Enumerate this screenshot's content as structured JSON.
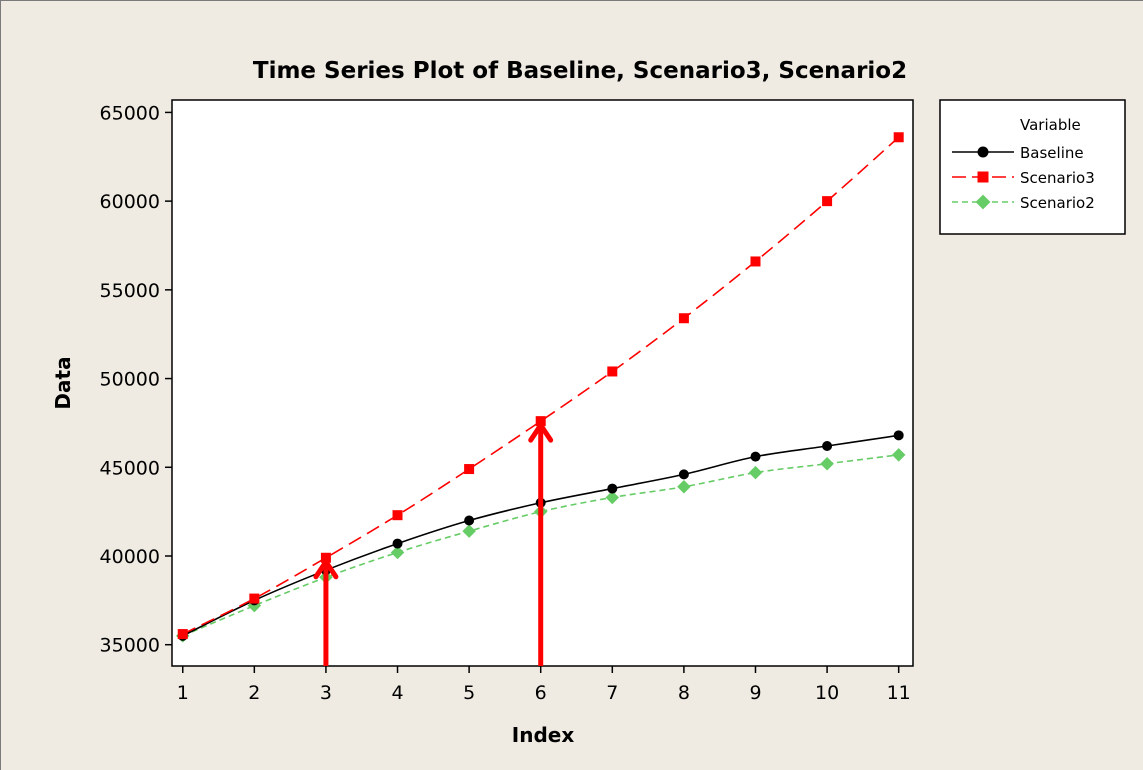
{
  "chart_data": {
    "type": "line",
    "title": "Time Series Plot of Baseline, Scenario3, Scenario2",
    "xlabel": "Index",
    "ylabel": "Data",
    "x": [
      1,
      2,
      3,
      4,
      5,
      6,
      7,
      8,
      9,
      10,
      11
    ],
    "xlim": [
      0.85,
      11.2
    ],
    "ylim": [
      33800,
      65700
    ],
    "yticks": [
      35000,
      40000,
      45000,
      50000,
      55000,
      60000,
      65000
    ],
    "grid": false,
    "legend_position": "right",
    "legend_title": "Variable",
    "series": [
      {
        "name": "Baseline",
        "color": "#000000",
        "marker": "circle",
        "line_style": "solid",
        "values": [
          35500,
          37500,
          39200,
          40700,
          42000,
          43000,
          43800,
          44600,
          45600,
          46200,
          46800
        ]
      },
      {
        "name": "Scenario3",
        "color": "#ff0000",
        "marker": "square",
        "line_style": "dashed",
        "values": [
          35600,
          37600,
          39900,
          42300,
          44900,
          47600,
          50400,
          53400,
          56600,
          60000,
          63600
        ]
      },
      {
        "name": "Scenario2",
        "color": "#66cc66",
        "marker": "diamond",
        "line_style": "dashed",
        "values": [
          35500,
          37200,
          38800,
          40200,
          41400,
          42500,
          43300,
          43900,
          44700,
          45200,
          45700
        ]
      }
    ],
    "annotations": [
      {
        "type": "arrow",
        "color": "#ff0000",
        "x": 3,
        "y_to": 39900
      },
      {
        "type": "arrow",
        "color": "#ff0000",
        "x": 6,
        "y_to": 47600
      }
    ]
  }
}
